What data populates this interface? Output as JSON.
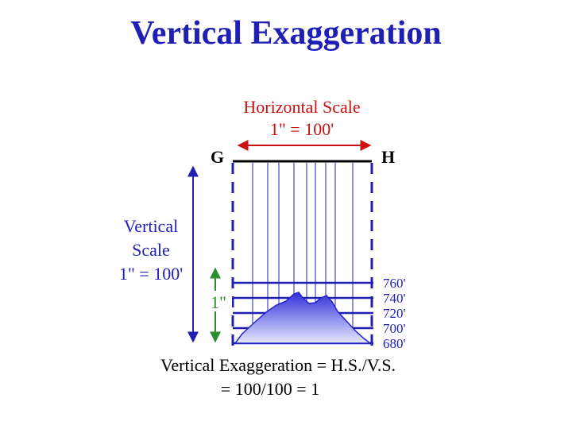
{
  "title": "Vertical Exaggeration",
  "horizontal_scale": {
    "label": "Horizontal Scale",
    "value": "1\" = 100'"
  },
  "endpoints": {
    "left": "G",
    "right": "H"
  },
  "vertical_scale": {
    "line1": "Vertical",
    "line2": "Scale",
    "value": "1\" = 100'"
  },
  "inch_marker": "1\"",
  "elevation_labels": [
    "760'",
    "740'",
    "720'",
    "700'",
    "680'"
  ],
  "formula": {
    "line1": "Vertical Exaggeration = H.S./V.S.",
    "line2": "= 100/100 = 1"
  },
  "colors": {
    "title": "#1f1fb4",
    "horizontal_scale": "#cc1111",
    "vertical_scale": "#1f1fb4",
    "inch_marker": "#2a8f2a",
    "elevation_labels": "#1f1fb4",
    "profile_fill_top": "#3030d8",
    "profile_fill_bottom": "#e6e8ff"
  }
}
